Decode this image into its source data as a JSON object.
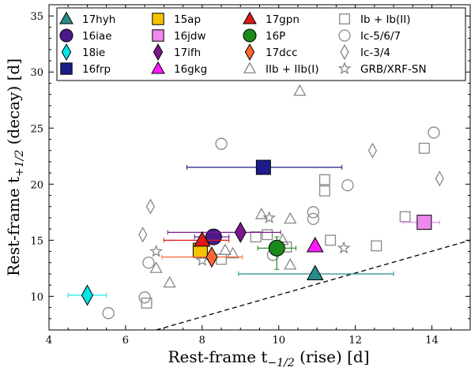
{
  "chart_data": {
    "type": "scatter",
    "xlabel": "Rest-frame t",
    "xlabel_sub": "−1/2",
    "xlabel_tail": " (rise) [d]",
    "ylabel": "Rest-frame t",
    "ylabel_sub": "+1/2",
    "ylabel_tail": " (decay) [d]",
    "xlim": [
      4,
      15
    ],
    "ylim": [
      7,
      36
    ],
    "xticks": [
      4,
      6,
      8,
      10,
      12,
      14
    ],
    "yticks": [
      10,
      15,
      20,
      25,
      30,
      35
    ],
    "legend_position": "top",
    "reference_line": {
      "style": "dashed",
      "points": [
        [
          6.8,
          7
        ],
        [
          15,
          15
        ]
      ]
    },
    "series": [
      {
        "name": "17hyh",
        "marker": "triangle",
        "color": "#2a8a8a",
        "points": [
          {
            "x": 10.95,
            "y": 12.0,
            "xerr": [
              2.0,
              2.05
            ]
          }
        ]
      },
      {
        "name": "16iae",
        "marker": "circle",
        "color": "#4b1a8a",
        "points": [
          {
            "x": 8.3,
            "y": 15.3,
            "xerr": [
              0.5,
              0.4
            ]
          }
        ]
      },
      {
        "name": "18ie",
        "marker": "diamond",
        "color": "#00e5e5",
        "points": [
          {
            "x": 5.0,
            "y": 10.1,
            "xerr": [
              0.5,
              0.5
            ]
          }
        ]
      },
      {
        "name": "16frp",
        "marker": "square",
        "color": "#1c1c8c",
        "points": [
          {
            "x": 9.6,
            "y": 21.5,
            "xerr": [
              2.0,
              2.05
            ]
          }
        ]
      },
      {
        "name": "15ap",
        "marker": "square",
        "color": "#f5c200",
        "points": [
          {
            "x": 7.95,
            "y": 14.1
          }
        ]
      },
      {
        "name": "16jdw",
        "marker": "square",
        "color": "#ee88ee",
        "points": [
          {
            "x": 13.8,
            "y": 16.6,
            "xerr": [
              0.55,
              0.4
            ]
          }
        ]
      },
      {
        "name": "17ifh",
        "marker": "diamond",
        "color": "#7a1a8a",
        "points": [
          {
            "x": 9.0,
            "y": 15.7,
            "xerr": [
              1.9,
              1.05
            ]
          }
        ]
      },
      {
        "name": "16gkg",
        "marker": "triangle",
        "color": "#ff1aff",
        "points": [
          {
            "x": 10.95,
            "y": 14.5
          }
        ]
      },
      {
        "name": "17gpn",
        "marker": "triangle",
        "color": "#dd1a1a",
        "points": [
          {
            "x": 8.0,
            "y": 15.0,
            "xerr": [
              1.0,
              0.7
            ]
          }
        ]
      },
      {
        "name": "16P",
        "marker": "circle",
        "color": "#1a8a1a",
        "points": [
          {
            "x": 9.95,
            "y": 14.3,
            "xerr": [
              0.5,
              0.5
            ],
            "yerr": [
              1.9,
              1.0
            ]
          }
        ]
      },
      {
        "name": "17dcc",
        "marker": "diamond",
        "color": "#ff6633",
        "points": [
          {
            "x": 8.25,
            "y": 13.5,
            "xerr": [
              1.3,
              0.8
            ]
          }
        ]
      },
      {
        "name": "IIb + IIb(I)",
        "marker": "triangle-open",
        "color": "#888888",
        "points": [
          {
            "x": 6.8,
            "y": 12.5
          },
          {
            "x": 7.15,
            "y": 11.2
          },
          {
            "x": 8.6,
            "y": 14.1
          },
          {
            "x": 8.8,
            "y": 13.8
          },
          {
            "x": 9.55,
            "y": 17.3
          },
          {
            "x": 10.3,
            "y": 12.8
          },
          {
            "x": 10.3,
            "y": 16.9
          },
          {
            "x": 10.1,
            "y": 15.0
          },
          {
            "x": 10.55,
            "y": 28.3
          }
        ]
      },
      {
        "name": "Ib + Ib(II)",
        "marker": "square-open",
        "color": "#888888",
        "points": [
          {
            "x": 6.55,
            "y": 9.4
          },
          {
            "x": 8.5,
            "y": 13.3
          },
          {
            "x": 9.4,
            "y": 15.3
          },
          {
            "x": 9.7,
            "y": 15.5
          },
          {
            "x": 10.2,
            "y": 14.4
          },
          {
            "x": 11.2,
            "y": 19.4
          },
          {
            "x": 11.2,
            "y": 20.4
          },
          {
            "x": 11.35,
            "y": 15.0
          },
          {
            "x": 12.55,
            "y": 14.5
          },
          {
            "x": 13.8,
            "y": 23.2
          },
          {
            "x": 13.3,
            "y": 17.1
          }
        ]
      },
      {
        "name": "Ic-5/6/7",
        "marker": "circle-open",
        "color": "#888888",
        "points": [
          {
            "x": 5.55,
            "y": 8.5
          },
          {
            "x": 6.5,
            "y": 9.9
          },
          {
            "x": 6.6,
            "y": 13.0
          },
          {
            "x": 8.5,
            "y": 23.6
          },
          {
            "x": 9.85,
            "y": 13.7
          },
          {
            "x": 10.9,
            "y": 17.5
          },
          {
            "x": 10.9,
            "y": 16.9
          },
          {
            "x": 11.8,
            "y": 19.9
          },
          {
            "x": 14.05,
            "y": 24.6
          }
        ]
      },
      {
        "name": "Ic-3/4",
        "marker": "diamond-open",
        "color": "#888888",
        "points": [
          {
            "x": 6.45,
            "y": 15.5
          },
          {
            "x": 6.65,
            "y": 18.0
          },
          {
            "x": 12.45,
            "y": 23.0
          },
          {
            "x": 14.2,
            "y": 20.5
          }
        ]
      },
      {
        "name": "GRB/XRF-SN",
        "marker": "star-open",
        "color": "#888888",
        "points": [
          {
            "x": 6.8,
            "y": 14.0
          },
          {
            "x": 8.0,
            "y": 13.2
          },
          {
            "x": 9.75,
            "y": 17.0
          },
          {
            "x": 11.7,
            "y": 14.3
          }
        ]
      }
    ]
  }
}
